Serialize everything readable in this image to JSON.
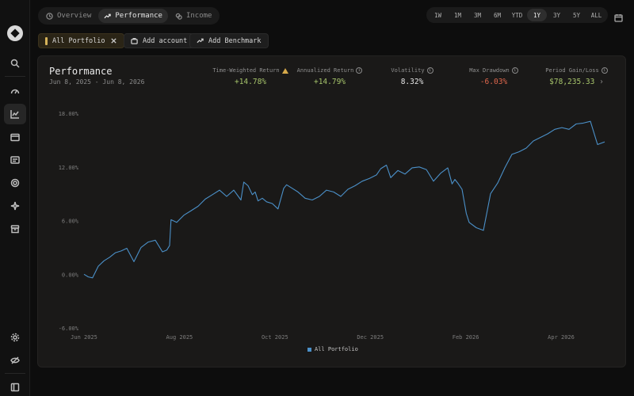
{
  "nav": {
    "tabs": [
      {
        "label": "Overview",
        "icon": "clock-icon"
      },
      {
        "label": "Performance",
        "icon": "trend-up-icon"
      },
      {
        "label": "Income",
        "icon": "coins-icon"
      }
    ],
    "active_tab": "Performance"
  },
  "ranges": [
    "1W",
    "1M",
    "3M",
    "6M",
    "YTD",
    "1Y",
    "3Y",
    "5Y",
    "ALL"
  ],
  "active_range": "1Y",
  "chips": {
    "portfolio": "All Portfolio",
    "add_account": "Add account",
    "add_benchmark": "Add Benchmark"
  },
  "card": {
    "title": "Performance",
    "subtitle": "Jun 8, 2025 - Jun 8, 2026"
  },
  "metrics": [
    {
      "label": "Time-Weighted Return",
      "value": "+14.78%",
      "tone": "pos",
      "icon": "warning-icon"
    },
    {
      "label": "Annualized Return",
      "value": "+14.79%",
      "tone": "pos",
      "icon": "info-icon"
    },
    {
      "label": "Volatility",
      "value": "8.32%",
      "tone": "neu",
      "icon": "info-icon"
    },
    {
      "label": "Max Drawdown",
      "value": "-6.03%",
      "tone": "neg",
      "icon": "info-icon"
    },
    {
      "label": "Period Gain/Loss",
      "value": "$78,235.33",
      "tone": "pos",
      "icon": "info-icon"
    }
  ],
  "colors": {
    "line": "#4b90c8",
    "positive": "#a6c46b",
    "negative": "#e0684d",
    "accent": "#d6b35a"
  },
  "chart_data": {
    "type": "line",
    "ylim": [
      -6,
      18
    ],
    "y_ticks": [
      "18.00%",
      "12.00%",
      "6.00%",
      "0.00%",
      "-6.00%"
    ],
    "x_ticks": [
      "Jun 2025",
      "Aug 2025",
      "Oct 2025",
      "Dec 2025",
      "Feb 2026",
      "Apr 2026"
    ],
    "grid": false,
    "legend": "bottom-center",
    "series": [
      {
        "name": "All Portfolio",
        "x": [
          0,
          3,
          6,
          10,
          14,
          18,
          22,
          26,
          30,
          35,
          40,
          45,
          50,
          55,
          58,
          60,
          61,
          65,
          70,
          75,
          80,
          85,
          90,
          95,
          100,
          105,
          110,
          112,
          115,
          118,
          120,
          122,
          125,
          128,
          132,
          136,
          140,
          142,
          145,
          150,
          155,
          160,
          165,
          170,
          175,
          180,
          185,
          190,
          195,
          200,
          205,
          208,
          212,
          215,
          220,
          225,
          230,
          235,
          240,
          245,
          250,
          255,
          258,
          260,
          262,
          265,
          268,
          270,
          275,
          280,
          285,
          290,
          295,
          300,
          305,
          310,
          315,
          320,
          325,
          330,
          335,
          340,
          345,
          350,
          355,
          360,
          365
        ],
        "values": [
          0.0,
          -0.3,
          -0.4,
          0.9,
          1.5,
          1.9,
          2.4,
          2.6,
          2.9,
          1.4,
          3.0,
          3.6,
          3.8,
          2.5,
          2.7,
          3.2,
          6.1,
          5.8,
          6.6,
          7.1,
          7.6,
          8.4,
          8.9,
          9.4,
          8.7,
          9.4,
          8.3,
          10.3,
          9.9,
          8.9,
          9.2,
          8.2,
          8.5,
          8.1,
          7.9,
          7.3,
          9.6,
          10.0,
          9.7,
          9.2,
          8.5,
          8.3,
          8.7,
          9.4,
          9.2,
          8.7,
          9.5,
          9.9,
          10.4,
          10.7,
          11.1,
          11.8,
          12.2,
          10.8,
          11.6,
          11.2,
          11.9,
          12.0,
          11.7,
          10.4,
          11.3,
          11.9,
          10.1,
          10.6,
          10.2,
          9.5,
          6.8,
          5.8,
          5.2,
          4.9,
          9.0,
          10.2,
          11.9,
          13.4,
          13.7,
          14.1,
          14.9,
          15.3,
          15.7,
          16.2,
          16.4,
          16.2,
          16.8,
          16.9,
          17.1,
          14.5,
          14.8
        ]
      }
    ]
  }
}
